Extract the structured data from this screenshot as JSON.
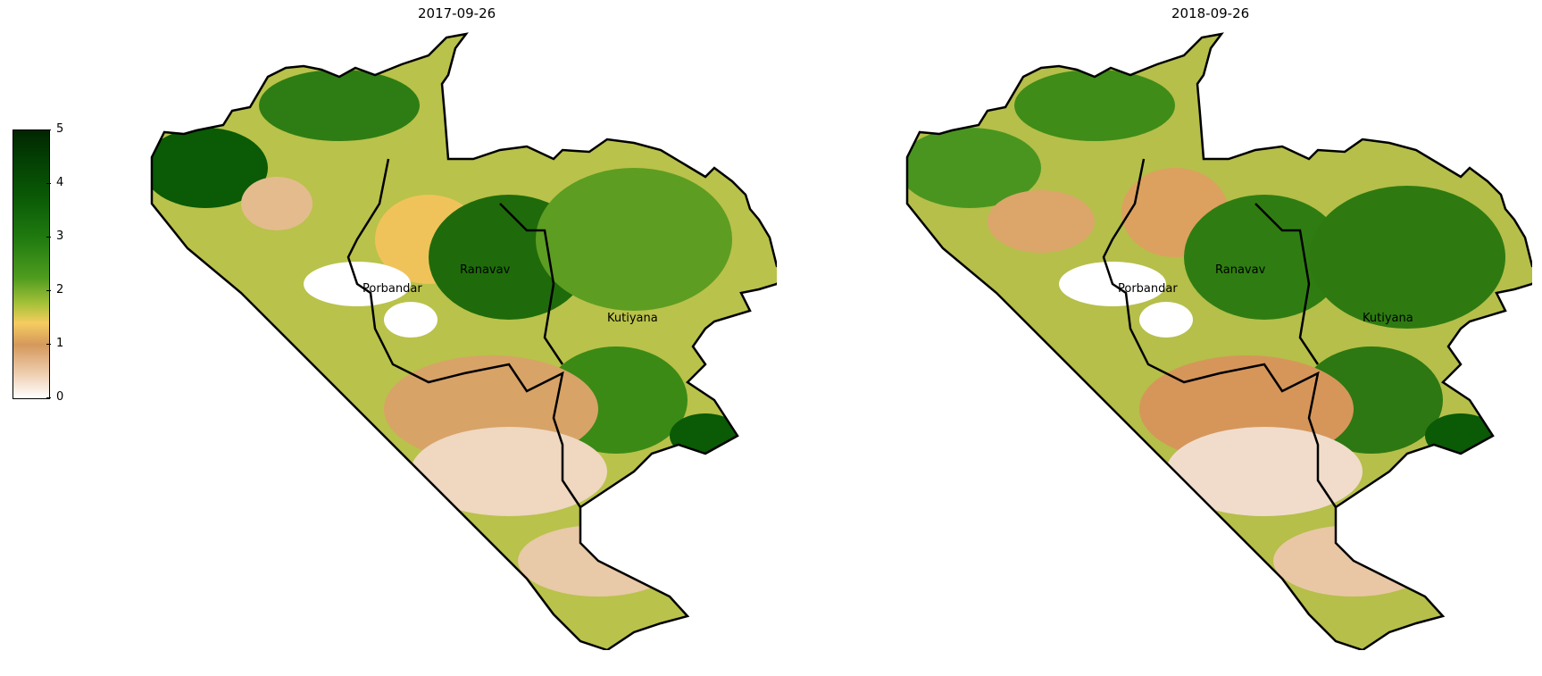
{
  "panels": [
    {
      "title": "2017-09-26"
    },
    {
      "title": "2018-09-26"
    }
  ],
  "colorbar": {
    "ticks": [
      "0",
      "1",
      "2",
      "3",
      "4",
      "5"
    ],
    "colors": [
      "#ffffff",
      "#d5985b",
      "#f5cc60",
      "#4f9c1f",
      "#0a5a06",
      "#012601"
    ]
  },
  "places": [
    "Porbandar",
    "Ranavav",
    "Kutiyana"
  ],
  "colors": {
    "boundary": "#000000",
    "land_low": "#d5985b",
    "land_mid": "#f5cc60",
    "veg_light": "#6aa62a",
    "veg_dark": "#0a5a06"
  }
}
